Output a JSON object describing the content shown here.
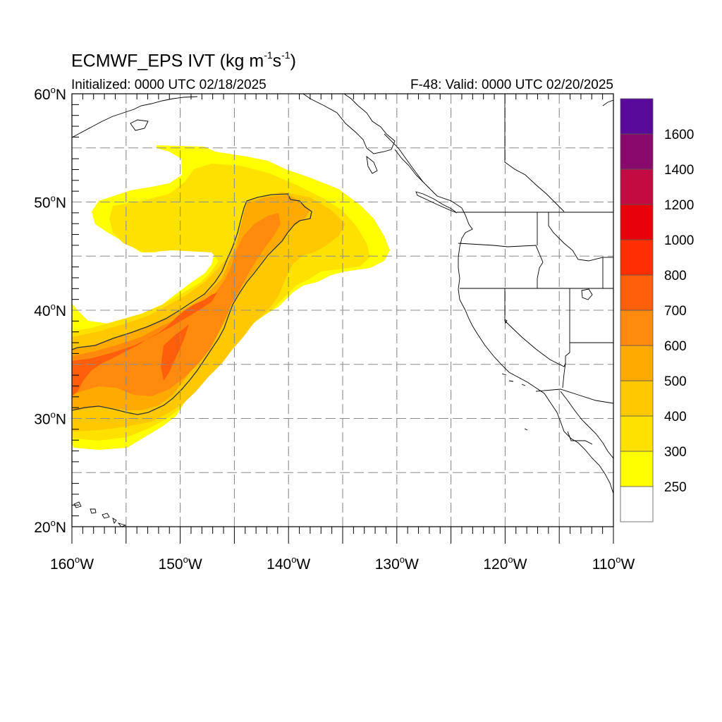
{
  "title": {
    "main": "ECMWF_EPS IVT (kg m",
    "sup1": "-1",
    "mid": "s",
    "sup2": "-1",
    "end": ")"
  },
  "subtitle_left": "Initialized: 0000 UTC 02/18/2025",
  "subtitle_right": "F-48: Valid: 0000 UTC 02/20/2025",
  "map": {
    "projection": "cylindrical-equidistant",
    "lon_range": [
      -160,
      -110
    ],
    "lat_range": [
      20,
      60
    ],
    "grid": "dashed-gray",
    "lat_ticks": [
      "20",
      "30",
      "40",
      "50",
      "60"
    ],
    "lon_ticks": [
      "160",
      "150",
      "140",
      "130",
      "120",
      "110"
    ],
    "deg_symbol": "o",
    "lat_suffix": "N",
    "lon_suffix": "W"
  },
  "colorbar": {
    "labels": [
      "250",
      "300",
      "400",
      "500",
      "600",
      "700",
      "800",
      "1000",
      "1200",
      "1400",
      "1600"
    ],
    "colors": [
      "#ffffff",
      "#ffff00",
      "#ffe100",
      "#ffc800",
      "#ffaa00",
      "#ff8a0d",
      "#ff5e0a",
      "#ff2f00",
      "#e8000b",
      "#c20b40",
      "#8a0a6c",
      "#5a0a9a"
    ]
  },
  "ivt_field": {
    "contour_level": 500,
    "bands": [
      {
        "level": 250,
        "color": "#ffff00"
      },
      {
        "level": 300,
        "color": "#ffe100"
      },
      {
        "level": 400,
        "color": "#ffc800"
      },
      {
        "level": 500,
        "color": "#ffaa00"
      },
      {
        "level": 600,
        "color": "#ff8a0d"
      },
      {
        "level": 700,
        "color": "#ff5e0a"
      }
    ]
  }
}
